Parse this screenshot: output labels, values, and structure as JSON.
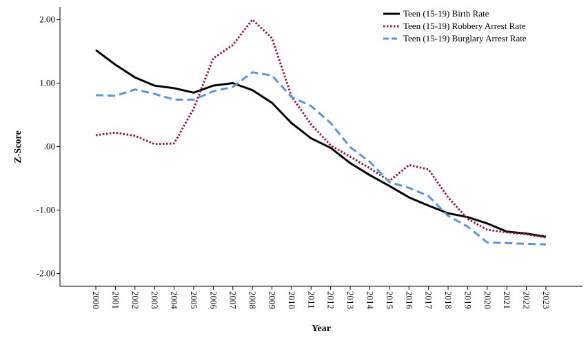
{
  "chart_data": {
    "type": "line",
    "title": "",
    "xlabel": "Year",
    "ylabel": "Z-Score",
    "ylim": [
      -2.2,
      2.2
    ],
    "y_ticks": [
      {
        "value": 2.0,
        "label": "2.00"
      },
      {
        "value": 1.0,
        "label": "1.00"
      },
      {
        "value": 0.0,
        "label": ".00"
      },
      {
        "value": -1.0,
        "label": "-1.00"
      },
      {
        "value": -2.0,
        "label": "-2.00"
      }
    ],
    "grid": false,
    "legend_position": "top-right",
    "categories": [
      "2000",
      "2001",
      "2002",
      "2003",
      "2004",
      "2005",
      "2006",
      "2007",
      "2008",
      "2009",
      "2010",
      "2011",
      "2012",
      "2013",
      "2014",
      "2015",
      "2016",
      "2017",
      "2018",
      "2019",
      "2020",
      "2021",
      "2022",
      "2023"
    ],
    "series": [
      {
        "name": "Teen (15-19) Birth Rate",
        "color": "#000000",
        "style": "solid",
        "values": [
          1.52,
          1.29,
          1.09,
          0.96,
          0.92,
          0.85,
          0.96,
          1.0,
          0.89,
          0.69,
          0.37,
          0.13,
          -0.02,
          -0.26,
          -0.45,
          -0.62,
          -0.8,
          -0.93,
          -1.05,
          -1.11,
          -1.21,
          -1.34,
          -1.37,
          -1.42
        ]
      },
      {
        "name": "Teen (15-19) Robbery Arrest Rate",
        "color": "#8b1a4a",
        "style": "dotted",
        "values": [
          0.18,
          0.22,
          0.17,
          0.04,
          0.05,
          0.6,
          1.39,
          1.6,
          2.0,
          1.71,
          0.79,
          0.35,
          0.02,
          -0.16,
          -0.34,
          -0.54,
          -0.29,
          -0.36,
          -0.8,
          -1.14,
          -1.31,
          -1.35,
          -1.38,
          -1.43
        ]
      },
      {
        "name": "Teen (15-19) Burglary Arrest Rate",
        "color": "#5b95d5",
        "style": "dashed",
        "values": [
          0.81,
          0.8,
          0.9,
          0.83,
          0.74,
          0.74,
          0.87,
          0.94,
          1.17,
          1.12,
          0.78,
          0.64,
          0.37,
          -0.01,
          -0.24,
          -0.56,
          -0.65,
          -0.78,
          -1.09,
          -1.26,
          -1.51,
          -1.52,
          -1.53,
          -1.54
        ]
      }
    ]
  }
}
